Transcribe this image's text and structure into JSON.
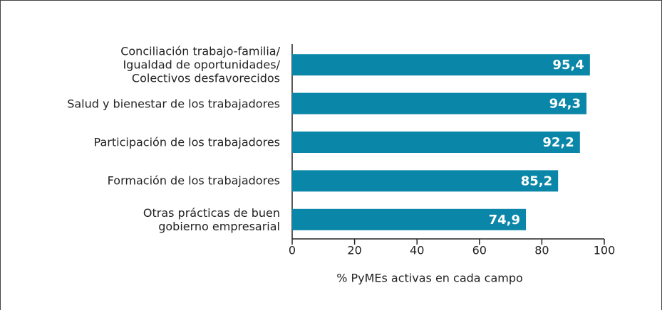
{
  "chart_data": {
    "type": "bar",
    "orientation": "horizontal",
    "categories": [
      "Conciliación trabajo-familia/\nIgualdad de oportunidades/\nColectivos desfavorecidos",
      "Salud y bienestar de los trabajadores",
      "Participación de los trabajadores",
      "Formación de los trabajadores",
      "Otras prácticas de buen\ngobierno empresarial"
    ],
    "values": [
      95.4,
      94.3,
      92.2,
      85.2,
      74.9
    ],
    "value_labels": [
      "95,4",
      "94,3",
      "92,2",
      "85,2",
      "74,9"
    ],
    "color": "#0a86a8",
    "xlim": [
      0,
      100
    ],
    "xticks": [
      0,
      20,
      40,
      60,
      80,
      100
    ],
    "xlabel": "% PyMEs activas en cada campo"
  }
}
